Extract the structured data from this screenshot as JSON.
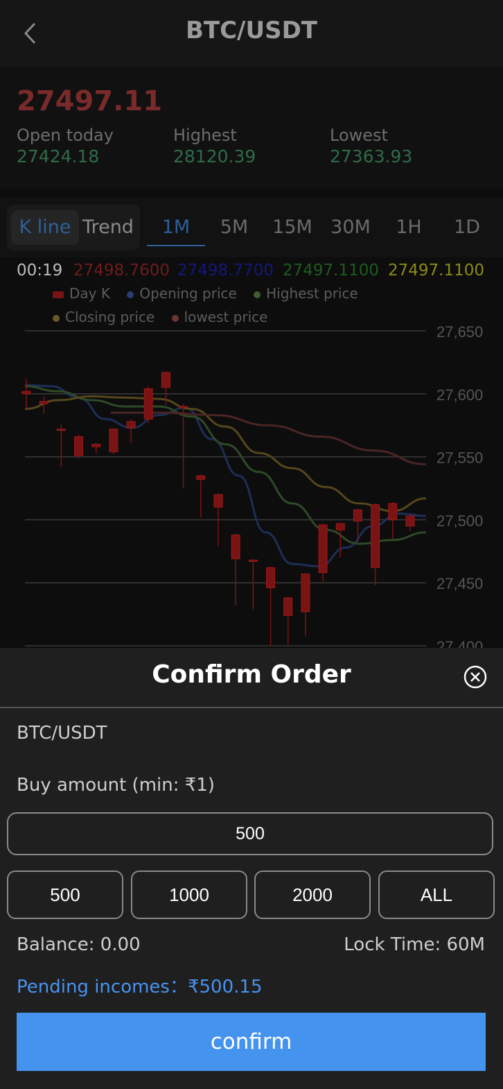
{
  "header": {
    "title": "BTC/USDT"
  },
  "ticker": {
    "last_price": "27497.11",
    "open_label": "Open today",
    "open_value": "27424.18",
    "high_label": "Highest",
    "high_value": "28120.39",
    "low_label": "Lowest",
    "low_value": "27363.93"
  },
  "tabs": {
    "view_modes": [
      "K line",
      "Trend"
    ],
    "timeframes": [
      "1M",
      "5M",
      "15M",
      "30M",
      "1H",
      "1D"
    ],
    "active_timeframe": "1M"
  },
  "readout": {
    "time": "00:19",
    "v1": "27498.7600",
    "v2": "27498.7700",
    "v3": "27497.1100",
    "v4": "27497.1100"
  },
  "colors": {
    "accent": "#4493ee",
    "up": "#2f6b49",
    "down": "#7a2a2a"
  },
  "chart_data": {
    "type": "line",
    "legend": [
      "Day K",
      "Opening price",
      "Highest price",
      "Closing price",
      "lowest price"
    ],
    "ylim": [
      27400,
      27650
    ],
    "yticks": [
      "27,650",
      "27,600",
      "27,550",
      "27,500",
      "27,450",
      "27,400"
    ],
    "candles": [
      {
        "o": 27602,
        "c": 27600,
        "h": 27612,
        "l": 27588
      },
      {
        "o": 27592,
        "c": 27594,
        "h": 27598,
        "l": 27584
      },
      {
        "o": 27572,
        "c": 27571,
        "h": 27576,
        "l": 27542
      },
      {
        "o": 27566,
        "c": 27551,
        "h": 27568,
        "l": 27549
      },
      {
        "o": 27560,
        "c": 27558,
        "h": 27561,
        "l": 27553
      },
      {
        "o": 27572,
        "c": 27554,
        "h": 27573,
        "l": 27552
      },
      {
        "o": 27578,
        "c": 27573,
        "h": 27580,
        "l": 27561
      },
      {
        "o": 27604,
        "c": 27580,
        "h": 27606,
        "l": 27577
      },
      {
        "o": 27617,
        "c": 27605,
        "h": 27618,
        "l": 27591
      },
      {
        "o": 27590,
        "c": 27590,
        "h": 27592,
        "l": 27525
      },
      {
        "o": 27535,
        "c": 27532,
        "h": 27536,
        "l": 27502
      },
      {
        "o": 27520,
        "c": 27510,
        "h": 27521,
        "l": 27479
      },
      {
        "o": 27488,
        "c": 27469,
        "h": 27489,
        "l": 27432
      },
      {
        "o": 27468,
        "c": 27467,
        "h": 27469,
        "l": 27429
      },
      {
        "o": 27462,
        "c": 27446,
        "h": 27463,
        "l": 27400
      },
      {
        "o": 27438,
        "c": 27424,
        "h": 27439,
        "l": 27401
      },
      {
        "o": 27457,
        "c": 27427,
        "h": 27458,
        "l": 27408
      },
      {
        "o": 27496,
        "c": 27458,
        "h": 27497,
        "l": 27451
      },
      {
        "o": 27497,
        "c": 27492,
        "h": 27498,
        "l": 27470
      },
      {
        "o": 27508,
        "c": 27499,
        "h": 27509,
        "l": 27482
      },
      {
        "o": 27512,
        "c": 27462,
        "h": 27513,
        "l": 27448
      },
      {
        "o": 27513,
        "c": 27500,
        "h": 27514,
        "l": 27485
      },
      {
        "o": 27503,
        "c": 27495,
        "h": 27504,
        "l": 27491
      }
    ],
    "series": [
      {
        "values": [
          27607,
          27606,
          27597,
          27580,
          27573,
          27583,
          27589,
          27564,
          27535,
          27490,
          27465,
          27463,
          27478,
          27495,
          27505,
          27503
        ]
      },
      {
        "values": [
          27606,
          27602,
          27595,
          27590,
          27590,
          27582,
          27560,
          27538,
          27513,
          27492,
          27481,
          27484,
          27490
        ]
      },
      {
        "values": [
          27588,
          27595,
          27598,
          27597,
          27596,
          27588,
          27574,
          27553,
          27541,
          27526,
          27513,
          27507,
          27517
        ]
      },
      {
        "values": [
          27585,
          27585,
          27583,
          27575,
          27566,
          27555,
          27544
        ]
      }
    ]
  },
  "order": {
    "title": "Confirm Order",
    "pair": "BTC/USDT",
    "buy_label": "Buy amount (min: ₹1)",
    "amount_value": "500",
    "quick_amounts": [
      "500",
      "1000",
      "2000",
      "ALL"
    ],
    "balance": "Balance: 0.00",
    "lock_time": "Lock Time: 60M",
    "pending": "Pending incomes：₹500.15",
    "confirm_label": "confirm"
  }
}
